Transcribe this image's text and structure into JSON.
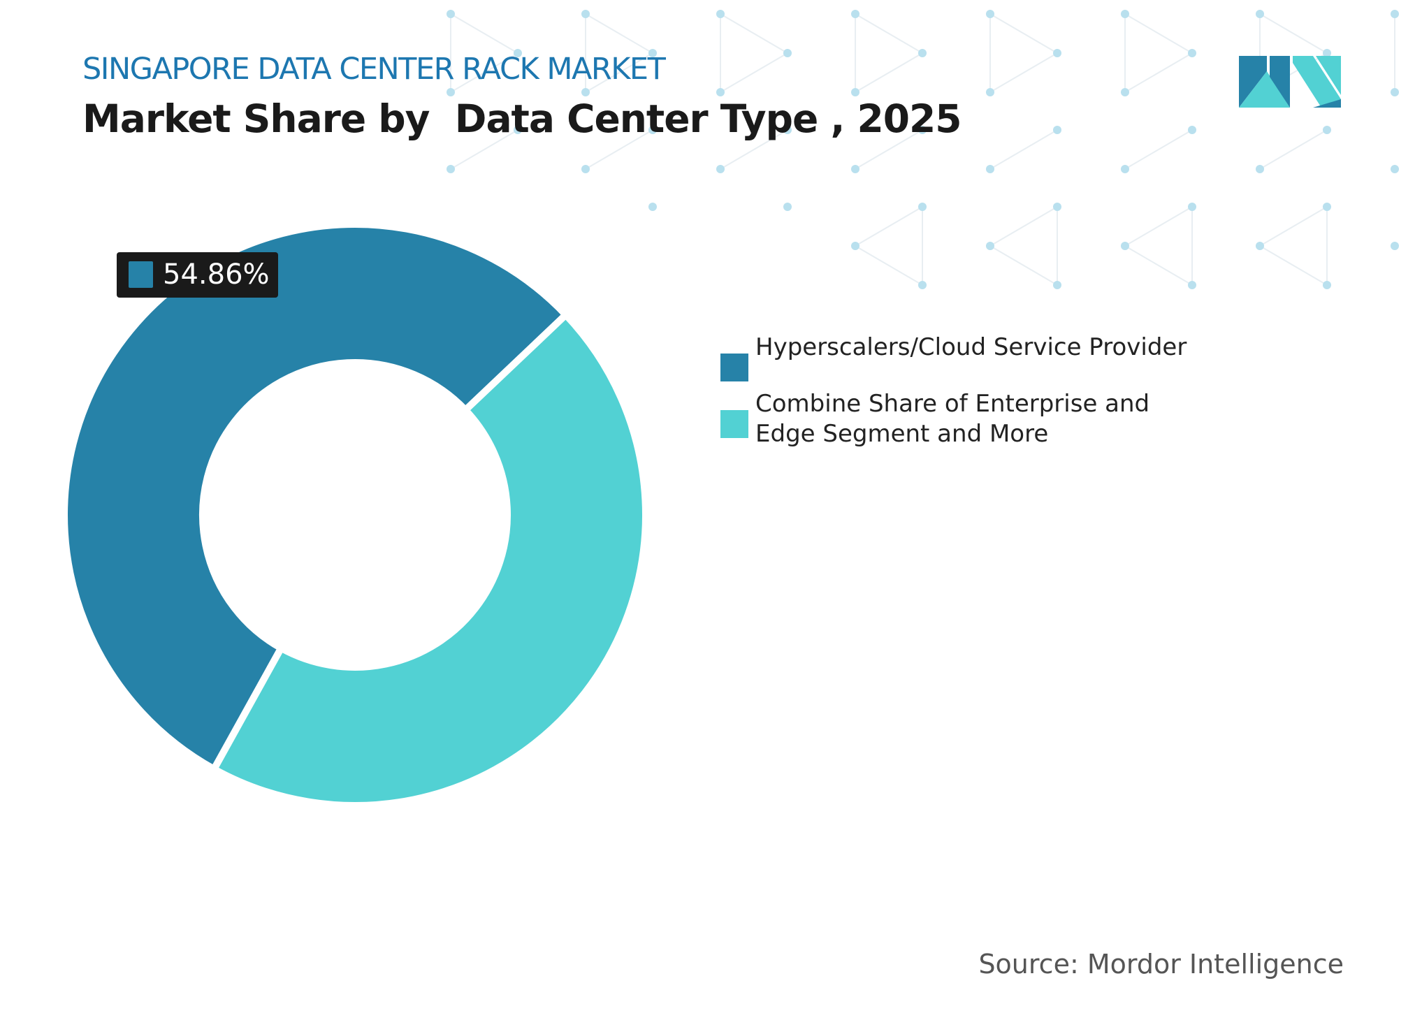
{
  "header": {
    "eyebrow": "SINGAPORE DATA CENTER RACK MARKET",
    "title": "Market Share by  Data Center Type , 2025"
  },
  "colors": {
    "eyebrow": "#1d77b0",
    "series_1": "#2682a8",
    "series_2": "#52d1d3",
    "label_bg": "#1a1a1a",
    "pattern_dot": "#b9e0ee",
    "pattern_line": "#e8eef2"
  },
  "logo": {
    "icon": "mordor-intelligence-logo-icon"
  },
  "chart_data": {
    "type": "pie",
    "subtype": "donut",
    "categories": [
      "Hyperscalers/Cloud Service Provider",
      "Combine Share of Enterprise and Edge Segment and More"
    ],
    "values": [
      54.86,
      45.14
    ],
    "colors": [
      "#2682a8",
      "#52d1d3"
    ],
    "data_labels": [
      "54.86%",
      ""
    ],
    "legend_position": "right"
  },
  "legend": {
    "items": [
      {
        "label": "Hyperscalers/Cloud Service Provider",
        "color": "#2682a8"
      },
      {
        "label": "Combine Share of Enterprise and Edge Segment and More",
        "color": "#52d1d3"
      }
    ]
  },
  "source": "Source: Mordor Intelligence"
}
